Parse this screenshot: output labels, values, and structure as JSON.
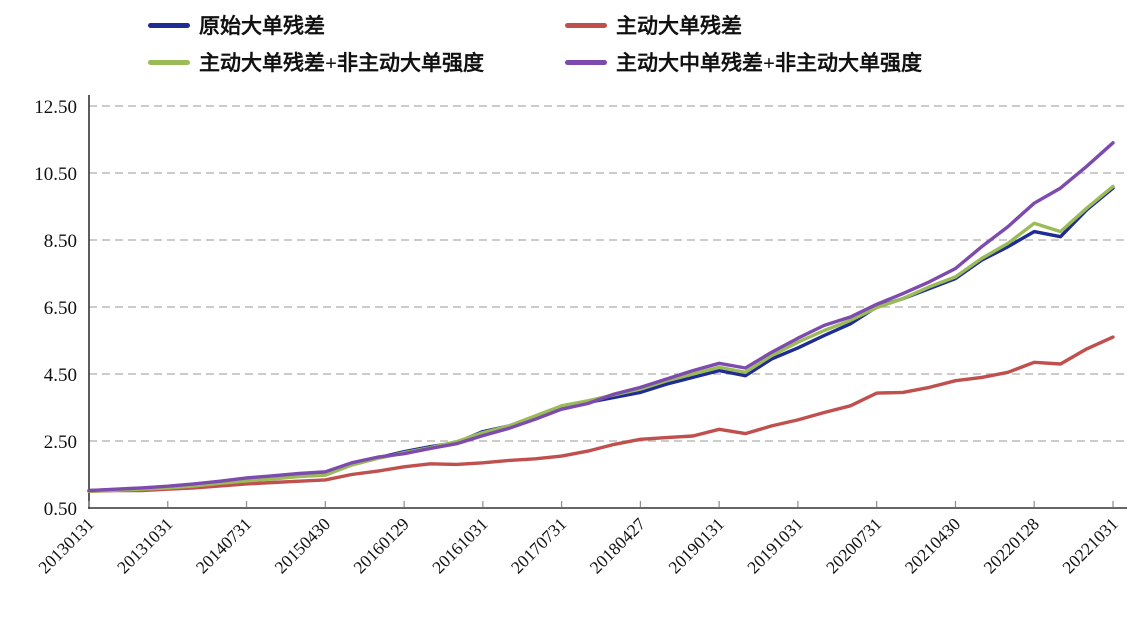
{
  "chart_data": {
    "type": "line",
    "title": "",
    "xlabel": "",
    "ylabel": "",
    "ylim": [
      0.5,
      12.5
    ],
    "y_tick_step": 2.0,
    "y_ticks": [
      "0.50",
      "2.50",
      "4.50",
      "6.50",
      "8.50",
      "10.50",
      "12.50"
    ],
    "grid": "horizontal-dashed",
    "legend_position": "top",
    "axis_color": "#333333",
    "grid_color": "#ADADAD",
    "tick_color": "#8C8C8C",
    "text_color": "#111111",
    "x_tick_labels": [
      "20130131",
      "20131031",
      "20140731",
      "20150430",
      "20160129",
      "20161031",
      "20170731",
      "20180427",
      "20190131",
      "20191031",
      "20200731",
      "20210430",
      "20220128",
      "20221031"
    ],
    "x": [
      "2013-01",
      "2013-04",
      "2013-07",
      "2013-10",
      "2014-01",
      "2014-04",
      "2014-07",
      "2014-10",
      "2015-01",
      "2015-04",
      "2015-07",
      "2015-10",
      "2016-01",
      "2016-04",
      "2016-07",
      "2016-10",
      "2017-01",
      "2017-04",
      "2017-07",
      "2017-10",
      "2018-01",
      "2018-04",
      "2018-07",
      "2018-10",
      "2019-01",
      "2019-04",
      "2019-07",
      "2019-10",
      "2020-01",
      "2020-04",
      "2020-07",
      "2020-10",
      "2021-01",
      "2021-04",
      "2021-07",
      "2021-10",
      "2022-01",
      "2022-04",
      "2022-07",
      "2022-10"
    ],
    "series": [
      {
        "name": "原始大单残差",
        "color": "#1F2C93",
        "values": [
          1.02,
          1.05,
          1.08,
          1.12,
          1.18,
          1.25,
          1.33,
          1.38,
          1.45,
          1.5,
          1.8,
          2.0,
          2.18,
          2.33,
          2.45,
          2.78,
          2.95,
          3.2,
          3.5,
          3.65,
          3.8,
          3.95,
          4.2,
          4.4,
          4.6,
          4.45,
          4.95,
          5.28,
          5.65,
          6.0,
          6.5,
          6.75,
          7.05,
          7.35,
          7.9,
          8.3,
          8.75,
          8.6,
          9.4,
          10.05
        ]
      },
      {
        "name": "主动大单残差",
        "color": "#C0504D",
        "values": [
          1.0,
          1.02,
          1.02,
          1.06,
          1.1,
          1.16,
          1.22,
          1.26,
          1.3,
          1.34,
          1.5,
          1.6,
          1.73,
          1.82,
          1.8,
          1.85,
          1.92,
          1.97,
          2.05,
          2.2,
          2.4,
          2.55,
          2.6,
          2.65,
          2.85,
          2.72,
          2.95,
          3.13,
          3.35,
          3.55,
          3.93,
          3.95,
          4.1,
          4.3,
          4.4,
          4.55,
          4.85,
          4.8,
          5.25,
          5.6
        ]
      },
      {
        "name": "主动大单残差+非主动大单强度",
        "color": "#9BBB59",
        "values": [
          1.0,
          1.03,
          1.06,
          1.1,
          1.16,
          1.24,
          1.31,
          1.37,
          1.44,
          1.48,
          1.78,
          1.98,
          2.15,
          2.3,
          2.48,
          2.75,
          2.95,
          3.25,
          3.55,
          3.7,
          3.88,
          4.05,
          4.3,
          4.5,
          4.7,
          4.55,
          5.05,
          5.45,
          5.8,
          6.1,
          6.48,
          6.75,
          7.1,
          7.4,
          7.95,
          8.4,
          9.0,
          8.75,
          9.45,
          10.1
        ]
      },
      {
        "name": "主动大中单残差+非主动大单强度",
        "color": "#7D4BAE",
        "values": [
          1.02,
          1.06,
          1.1,
          1.15,
          1.22,
          1.3,
          1.4,
          1.46,
          1.53,
          1.58,
          1.85,
          2.02,
          2.12,
          2.28,
          2.42,
          2.66,
          2.88,
          3.15,
          3.45,
          3.62,
          3.9,
          4.1,
          4.35,
          4.6,
          4.82,
          4.68,
          5.15,
          5.57,
          5.95,
          6.2,
          6.58,
          6.9,
          7.25,
          7.65,
          8.3,
          8.9,
          9.6,
          10.05,
          10.7,
          11.4
        ]
      }
    ]
  }
}
